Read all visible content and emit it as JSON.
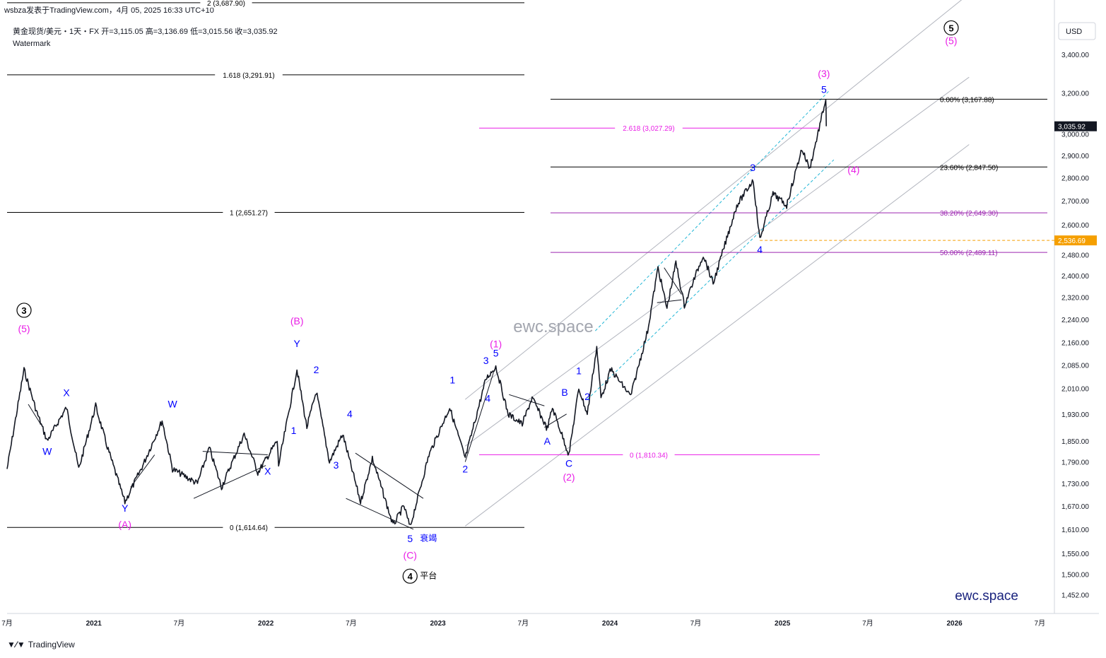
{
  "header": {
    "publisher": "wsbza发表于TradingView.com，4月 05, 2025 16:33 UTC+10",
    "symbol_line": "黄金现货/美元・1天・FX  开=3,115.05  高=3,136.69  低=3,015.56  收=3,035.92",
    "watermark_label": "Watermark"
  },
  "footer": {
    "brand": "TradingView",
    "logo": "tradingview-logo-icon"
  },
  "currency": "USD",
  "site_watermark": "ewc.space",
  "site_brand": "ewc.space",
  "colors": {
    "candles": "#131722",
    "magenta": "#e91ee6",
    "purple": "#9c27b0",
    "blue": "#0000ff",
    "black": "#000000",
    "cyan": "#22b6d6",
    "orange": "#f59f00",
    "channel": "#b2b5be",
    "price_tag": "#131722"
  },
  "price_tags": [
    {
      "price": 3035.92,
      "label": "3,035.92",
      "color": "#131722"
    },
    {
      "price": 2536.69,
      "label": "2,536.69",
      "color": "#f59f00"
    }
  ],
  "chart_data": {
    "type": "line",
    "title": "黄金现货/美元・1天・FX",
    "ylabel": "USD",
    "ylim": [
      1410,
      3590
    ],
    "y_ticks": [
      3400,
      3200,
      3000,
      2900,
      2800,
      2700,
      2600,
      2480,
      2400,
      2320,
      2240,
      2160,
      2085,
      2010,
      1930,
      1850,
      1790,
      1730,
      1670,
      1610,
      1550,
      1500,
      1452
    ],
    "y_tick_labels": [
      "3,400.00",
      "3,200.00",
      "3,000.00",
      "2,900.00",
      "2,800.00",
      "2,700.00",
      "2,600.00",
      "2,480.00",
      "2,400.00",
      "2,320.00",
      "2,240.00",
      "2,160.00",
      "2,085.00",
      "2,010.00",
      "1,930.00",
      "1,850.00",
      "1,790.00",
      "1,730.00",
      "1,670.00",
      "1,610.00",
      "1,550.00",
      "1,500.00",
      "1,452.00"
    ],
    "x_ticks": [
      "2020-07",
      "2021-01",
      "2021-07",
      "2022-01",
      "2022-07",
      "2023-01",
      "2023-07",
      "2024-01",
      "2024-07",
      "2025-01",
      "2025-07",
      "2026-01",
      "2026-07"
    ],
    "x_tick_labels": [
      "7月",
      "2021",
      "7月",
      "2022",
      "7月",
      "2023",
      "7月",
      "2024",
      "7月",
      "2025",
      "7月",
      "2026",
      "7月"
    ],
    "series": [
      {
        "name": "黄金现货/美元",
        "x": [
          "2020-07-01",
          "2020-08-06",
          "2020-09-01",
          "2020-09-24",
          "2020-11-04",
          "2020-11-30",
          "2021-01-05",
          "2021-01-28",
          "2021-03-08",
          "2021-04-15",
          "2021-05-26",
          "2021-06-17",
          "2021-08-09",
          "2021-09-03",
          "2021-09-29",
          "2021-11-16",
          "2021-12-15",
          "2022-01-25",
          "2022-01-28",
          "2022-03-08",
          "2022-03-29",
          "2022-04-18",
          "2022-05-16",
          "2022-06-13",
          "2022-07-21",
          "2022-08-15",
          "2022-09-28",
          "2022-10-21",
          "2022-11-03",
          "2022-12-13",
          "2023-01-26",
          "2023-02-28",
          "2023-04-13",
          "2023-05-04",
          "2023-05-30",
          "2023-06-29",
          "2023-07-20",
          "2023-08-21",
          "2023-09-01",
          "2023-10-06",
          "2023-10-27",
          "2023-11-14",
          "2023-12-04",
          "2023-12-13",
          "2024-01-03",
          "2024-02-14",
          "2024-03-21",
          "2024-04-12",
          "2024-05-01",
          "2024-05-20",
          "2024-06-07",
          "2024-07-17",
          "2024-08-07",
          "2024-09-26",
          "2024-10-31",
          "2024-11-14",
          "2024-12-12",
          "2025-01-10",
          "2025-02-11",
          "2025-02-28",
          "2025-04-03",
          "2025-04-04"
        ],
        "y": [
          1770,
          2070,
          1940,
          1850,
          1950,
          1770,
          1955,
          1840,
          1680,
          1780,
          1910,
          1770,
          1730,
          1830,
          1720,
          1870,
          1760,
          1850,
          1780,
          2070,
          1890,
          2000,
          1790,
          1870,
          1680,
          1800,
          1620,
          1670,
          1615,
          1810,
          1950,
          1800,
          2040,
          2080,
          1930,
          1900,
          1980,
          1885,
          1950,
          1810,
          2010,
          1930,
          2145,
          1980,
          2070,
          1985,
          2200,
          2430,
          2280,
          2450,
          2290,
          2480,
          2370,
          2680,
          2790,
          2540,
          2730,
          2680,
          2930,
          2840,
          3168,
          3036
        ]
      }
    ],
    "horizontal_levels": [
      {
        "label": "2 (3,687.90)",
        "price": 3687.9,
        "color": "#000000"
      },
      {
        "label": "1.618 (3,291.91)",
        "price": 3291.91,
        "color": "#000000"
      },
      {
        "label": "1 (2,651.27)",
        "price": 2651.27,
        "color": "#000000"
      },
      {
        "label": "0 (1,614.64)",
        "price": 1614.64,
        "color": "#000000"
      },
      {
        "label": "2.618 (3,027.29)",
        "price": 3027.29,
        "color": "#e91ee6"
      },
      {
        "label": "0 (1,810.34)",
        "price": 1810.34,
        "color": "#e91ee6"
      },
      {
        "label": "0.00% (3,167.88)",
        "price": 3167.88,
        "color": "#000000"
      },
      {
        "label": "23.60% (2,847.50)",
        "price": 2847.5,
        "color": "#000000"
      },
      {
        "label": "38.20% (2,649.30)",
        "price": 2649.3,
        "color": "#9c27b0"
      },
      {
        "label": "50.00% (2,489.11)",
        "price": 2489.11,
        "color": "#9c27b0"
      }
    ],
    "wave_labels": [
      {
        "text": "3",
        "style": "circle",
        "color": "#000000",
        "x": "2020-08-06",
        "price": 2260
      },
      {
        "text": "(5)",
        "color": "#e91ee6",
        "x": "2020-08-06",
        "price": 2195
      },
      {
        "text": "W",
        "color": "#0000ff",
        "x": "2020-09-24",
        "price": 1810
      },
      {
        "text": "X",
        "color": "#0000ff",
        "x": "2020-11-04",
        "price": 1985
      },
      {
        "text": "W",
        "color": "#0000ff",
        "x": "2021-06-17",
        "price": 1950
      },
      {
        "text": "Y",
        "color": "#0000ff",
        "x": "2021-03-08",
        "price": 1655
      },
      {
        "text": "(A)",
        "color": "#e91ee6",
        "x": "2021-03-08",
        "price": 1613
      },
      {
        "text": "X",
        "color": "#0000ff",
        "x": "2022-01-05",
        "price": 1755
      },
      {
        "text": "(B)",
        "color": "#e91ee6",
        "x": "2022-03-08",
        "price": 2222
      },
      {
        "text": "Y",
        "color": "#0000ff",
        "x": "2022-03-08",
        "price": 2145
      },
      {
        "text": "1",
        "color": "#0000ff",
        "x": "2022-03-01",
        "price": 1870
      },
      {
        "text": "2",
        "color": "#0000ff",
        "x": "2022-04-18",
        "price": 2058
      },
      {
        "text": "3",
        "color": "#0000ff",
        "x": "2022-05-30",
        "price": 1771
      },
      {
        "text": "4",
        "color": "#0000ff",
        "x": "2022-06-28",
        "price": 1920
      },
      {
        "text": "5",
        "color": "#0000ff",
        "x": "2022-11-03",
        "price": 1578
      },
      {
        "text": "衰竭",
        "color": "#0000ff",
        "x": "2022-11-24",
        "price": 1580
      },
      {
        "text": "(C)",
        "color": "#e91ee6",
        "x": "2022-11-03",
        "price": 1537
      },
      {
        "text": "4",
        "style": "circle",
        "color": "#000000",
        "x": "2022-11-03",
        "price": 1487
      },
      {
        "text": "平台",
        "color": "#000000",
        "x": "2022-11-24",
        "price": 1490
      },
      {
        "text": "1",
        "color": "#0000ff",
        "x": "2023-02-01",
        "price": 2025
      },
      {
        "text": "2",
        "color": "#0000ff",
        "x": "2023-02-28",
        "price": 1760
      },
      {
        "text": "3",
        "color": "#0000ff",
        "x": "2023-04-13",
        "price": 2088
      },
      {
        "text": "4",
        "color": "#0000ff",
        "x": "2023-04-17",
        "price": 1968
      },
      {
        "text": "5",
        "color": "#0000ff",
        "x": "2023-05-04",
        "price": 2113
      },
      {
        "text": "(1)",
        "color": "#e91ee6",
        "x": "2023-05-04",
        "price": 2143
      },
      {
        "text": "A",
        "color": "#0000ff",
        "x": "2023-08-21",
        "price": 1840
      },
      {
        "text": "B",
        "color": "#0000ff",
        "x": "2023-09-27",
        "price": 1986
      },
      {
        "text": "C",
        "color": "#0000ff",
        "x": "2023-10-06",
        "price": 1776
      },
      {
        "text": "(2)",
        "color": "#e91ee6",
        "x": "2023-10-06",
        "price": 1738
      },
      {
        "text": "1",
        "color": "#0000ff",
        "x": "2023-10-27",
        "price": 2055
      },
      {
        "text": "2",
        "color": "#0000ff",
        "x": "2023-11-14",
        "price": 1973
      },
      {
        "text": "3",
        "color": "#0000ff",
        "x": "2024-10-30",
        "price": 2830
      },
      {
        "text": "4",
        "color": "#0000ff",
        "x": "2024-11-14",
        "price": 2487
      },
      {
        "text": "5",
        "color": "#0000ff",
        "x": "2025-03-30",
        "price": 3200
      },
      {
        "text": "(3)",
        "color": "#e91ee6",
        "x": "2025-03-30",
        "price": 3280
      },
      {
        "text": "(4)",
        "color": "#e91ee6",
        "x": "2025-06-01",
        "price": 2820
      },
      {
        "text": "5",
        "style": "circle",
        "color": "#000000",
        "x": "2025-12-25",
        "price": 3525
      },
      {
        "text": "(5)",
        "color": "#e91ee6",
        "x": "2025-12-25",
        "price": 3455
      }
    ]
  }
}
